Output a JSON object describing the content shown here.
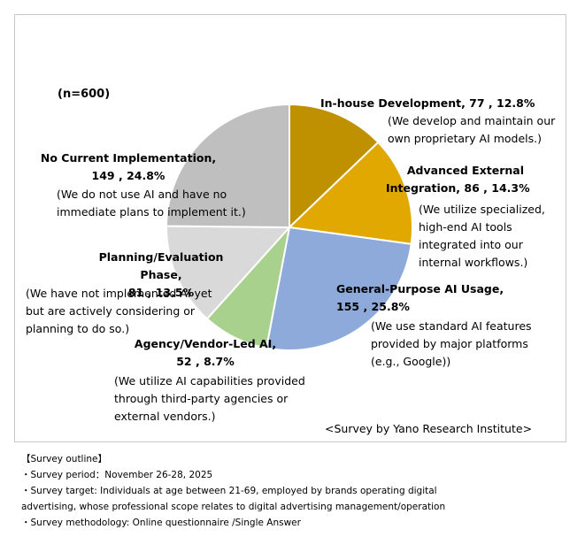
{
  "sample": "(n=600)",
  "source": "<Survey by Yano Research Institute>",
  "colors": {
    "in_house": "#bf9000",
    "advanced": "#e0a800",
    "general": "#8eaadb",
    "agency": "#a9d18e",
    "planning": "#d9d9d9",
    "none": "#bfbfbf"
  },
  "chart_data": {
    "type": "pie",
    "slices": [
      {
        "name": "In-house Development",
        "count": 77,
        "percent": 12.8,
        "color": "#bf9000"
      },
      {
        "name": "Advanced External Integration",
        "count": 86,
        "percent": 14.3,
        "color": "#e0a800"
      },
      {
        "name": "General-Purpose AI Usage",
        "count": 155,
        "percent": 25.8,
        "color": "#8eaadb"
      },
      {
        "name": "Agency/Vendor-Led AI",
        "count": 52,
        "percent": 8.7,
        "color": "#a9d18e"
      },
      {
        "name": "Planning/Evaluation Phase",
        "count": 81,
        "percent": 13.5,
        "color": "#d9d9d9"
      },
      {
        "name": "No Current Implementation",
        "count": 149,
        "percent": 24.8,
        "color": "#bfbfbf"
      }
    ]
  },
  "labels": {
    "in_house": {
      "title": "In-house Development, 77 , 12.8%",
      "desc1": "(We develop and maintain our",
      "desc2": "own proprietary AI models.)"
    },
    "advanced": {
      "title1": "Advanced External",
      "title2": "Integration, 86 , 14.3%",
      "desc1": "(We utilize specialized,",
      "desc2": "high-end AI tools",
      "desc3": "integrated into our",
      "desc4": "internal workflows.)"
    },
    "general": {
      "title1": "General-Purpose AI Usage,",
      "title2": "155 , 25.8%",
      "desc1": "(We use standard AI features",
      "desc2": "provided by major platforms",
      "desc3": "(e.g., Google))"
    },
    "agency": {
      "title1": "Agency/Vendor-Led AI,",
      "title2": "52 , 8.7%",
      "desc1": "(We utilize AI capabilities provided",
      "desc2": "through third-party agencies or",
      "desc3": "external vendors.)"
    },
    "planning": {
      "title1": "Planning/Evaluation Phase,",
      "title2": "81 , 13.5%",
      "desc1": "(We have not implemented AI yet",
      "desc2": "but are actively considering or",
      "desc3": "planning to do so.)"
    },
    "none": {
      "title1": "No Current Implementation,",
      "title2": "149 , 24.8%",
      "desc1": "(We do not use AI and have no",
      "desc2": "immediate plans to implement it.)"
    }
  },
  "outline": {
    "heading": "【Survey outline】",
    "period": "・Survey period：November 26-28, 2025",
    "target1": "・Survey target: Individuals at age between 21-69, employed by brands operating digital",
    "target2": "advertising, whose professional scope relates to digital advertising management/operation",
    "method": "・Survey methodology: Online questionnaire /Single Answer"
  }
}
